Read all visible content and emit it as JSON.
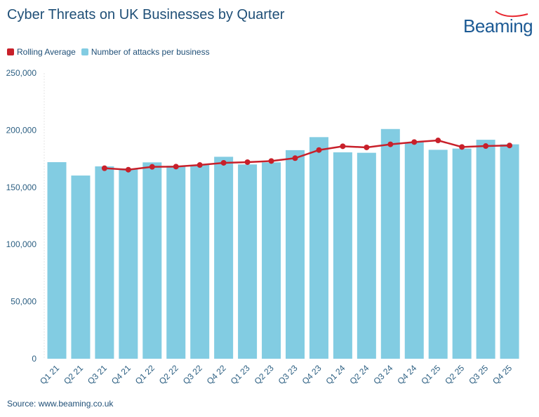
{
  "chart_data": {
    "type": "bar",
    "title": "Cyber Threats on UK Businesses by Quarter",
    "categories": [
      "Q1 21",
      "Q2 21",
      "Q3 21",
      "Q4 21",
      "Q1 22",
      "Q2 22",
      "Q3 22",
      "Q4 22",
      "Q1 23",
      "Q2 23",
      "Q3 23",
      "Q4 23",
      "Q1 24",
      "Q2 24",
      "Q3 24",
      "Q4 24",
      "Q1 25",
      "Q2 25",
      "Q3 25",
      "Q4 25"
    ],
    "series": [
      {
        "name": "Number of attacks per business",
        "type": "bar",
        "color": "#82cce2",
        "values": [
          172000,
          160300,
          168300,
          166500,
          171800,
          168900,
          169500,
          176700,
          170000,
          171800,
          182500,
          193900,
          180600,
          180200,
          201000,
          189500,
          182800,
          183900,
          191600,
          187600
        ]
      },
      {
        "name": "Rolling Average",
        "type": "line",
        "color": "#c8202a",
        "values": [
          null,
          null,
          166700,
          165400,
          167900,
          168100,
          169500,
          171400,
          172000,
          173000,
          175500,
          182600,
          185900,
          184900,
          187600,
          189600,
          191000,
          185300,
          186100,
          186600
        ]
      }
    ],
    "ylim": [
      0,
      250000
    ],
    "yticks": [
      "0",
      "50,000",
      "100,000",
      "150,000",
      "200,000",
      "250,000"
    ],
    "xlabel": "",
    "ylabel": "",
    "grid": false,
    "legend": "top-left"
  },
  "logo": {
    "text": "Beaming"
  },
  "source": "Source: www.beaming.co.uk"
}
